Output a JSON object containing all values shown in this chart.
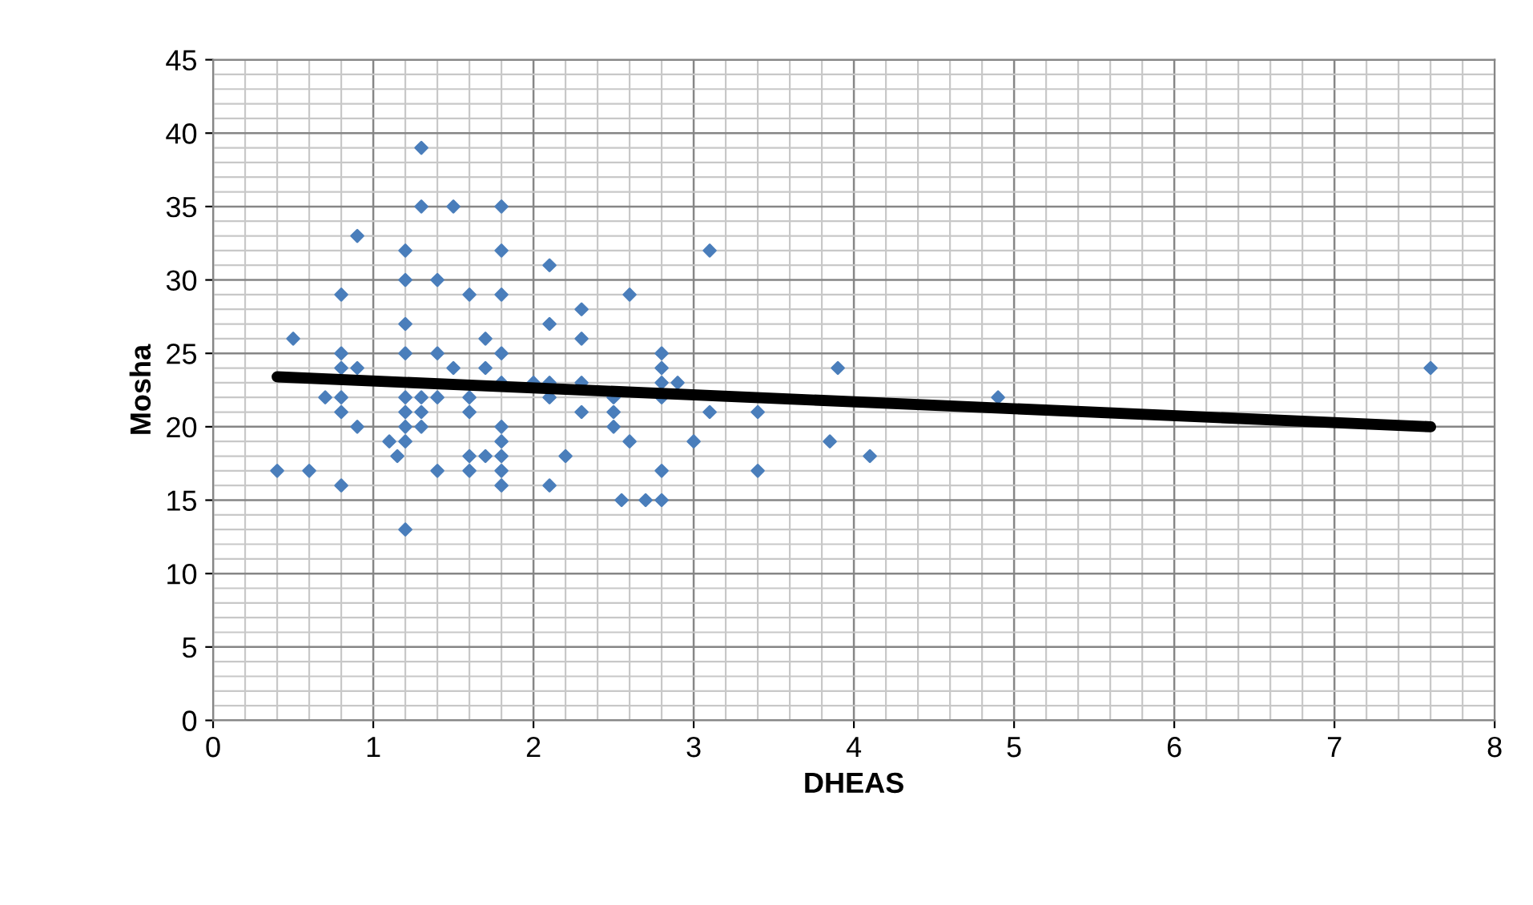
{
  "chart_data": {
    "type": "scatter",
    "xlabel": "DHEAS",
    "ylabel": "Mosha",
    "xlim": [
      0,
      8
    ],
    "xticks": [
      0,
      1,
      2,
      3,
      4,
      5,
      6,
      7,
      8
    ],
    "ylim": [
      0,
      45
    ],
    "yticks": [
      0,
      5,
      10,
      15,
      20,
      25,
      30,
      35,
      40,
      45
    ],
    "grid": true,
    "series": [
      {
        "color": "#4a7ebb",
        "marker": "diamond",
        "x": [
          0.4,
          0.5,
          0.6,
          0.7,
          0.8,
          0.8,
          0.8,
          0.8,
          0.8,
          0.8,
          0.9,
          0.9,
          0.9,
          1.1,
          1.15,
          1.2,
          1.2,
          1.2,
          1.2,
          1.2,
          1.2,
          1.2,
          1.2,
          1.2,
          1.3,
          1.3,
          1.3,
          1.3,
          1.3,
          1.4,
          1.4,
          1.4,
          1.4,
          1.5,
          1.5,
          1.6,
          1.6,
          1.6,
          1.6,
          1.6,
          1.7,
          1.7,
          1.7,
          1.8,
          1.8,
          1.8,
          1.8,
          1.8,
          1.8,
          1.8,
          1.8,
          1.8,
          1.8,
          2.0,
          2.1,
          2.1,
          2.1,
          2.1,
          2.1,
          2.2,
          2.3,
          2.3,
          2.3,
          2.3,
          2.5,
          2.5,
          2.5,
          2.55,
          2.6,
          2.6,
          2.7,
          2.8,
          2.8,
          2.8,
          2.8,
          2.8,
          2.8,
          2.9,
          3.0,
          3.1,
          3.1,
          3.4,
          3.4,
          3.85,
          3.9,
          4.1,
          4.9,
          7.6
        ],
        "values": [
          17,
          26,
          17,
          22,
          29,
          25,
          24,
          22,
          21,
          16,
          33,
          24,
          20,
          19,
          18,
          32,
          30,
          27,
          25,
          22,
          21,
          20,
          19,
          13,
          39,
          35,
          22,
          21,
          20,
          30,
          25,
          22,
          17,
          35,
          24,
          29,
          22,
          21,
          18,
          17,
          26,
          24,
          18,
          35,
          32,
          29,
          25,
          23,
          20,
          19,
          18,
          17,
          16,
          23,
          31,
          27,
          23,
          22,
          16,
          18,
          28,
          26,
          23,
          21,
          22,
          21,
          20,
          15,
          29,
          19,
          15,
          25,
          24,
          23,
          22,
          17,
          15,
          23,
          19,
          32,
          21,
          21,
          17,
          19,
          24,
          18,
          22,
          24
        ]
      },
      {
        "type": "line",
        "marker": "none",
        "color": "#000000",
        "x": [
          0.4,
          7.6
        ],
        "values": [
          23.4,
          20.0
        ]
      }
    ]
  }
}
